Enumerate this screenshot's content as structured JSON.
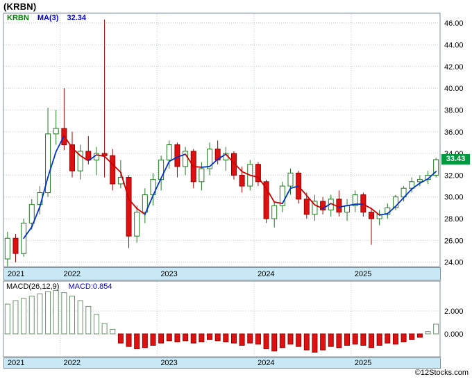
{
  "title": "(KRBN)",
  "legend": {
    "ticker": "KRBN",
    "ma_label": "MA(3)",
    "ma_value": "32.34"
  },
  "price_badge": "33.43",
  "macd_header": {
    "label": "MACD(26,12,9)",
    "value_label": "MACD:0.854"
  },
  "watermark": "©12Stocks.com",
  "colors": {
    "up_green": "#1f7a1f",
    "up_fill": "#ffffff",
    "down_red": "#dd1111",
    "down_stroke": "#990000",
    "ma_up_blue": "#0033cc",
    "ma_down_red": "#cc0000",
    "grid_gray": "#c4ccd4",
    "panel_border": "#7d8f9e",
    "band_blue": "#c9e8f5",
    "badge_green": "#009940",
    "legend_ticker_green": "#008000",
    "legend_blue": "#0000cd",
    "macd_pos_outline": "#6b8f6b",
    "macd_neg_red": "#dd1111",
    "text_black": "#000000"
  },
  "chart_data": {
    "type": "candlestick_with_macd",
    "title": "(KRBN)",
    "xlabel": "",
    "ylabel": "",
    "grid": true,
    "legend_position": "top-left-inside",
    "months": [
      "2021-06",
      "2021-07",
      "2021-08",
      "2021-09",
      "2021-10",
      "2021-11",
      "2021-12",
      "2022-01",
      "2022-02",
      "2022-03",
      "2022-04",
      "2022-05",
      "2022-06",
      "2022-07",
      "2022-08",
      "2022-09",
      "2022-10",
      "2022-11",
      "2022-12",
      "2023-01",
      "2023-02",
      "2023-03",
      "2023-04",
      "2023-05",
      "2023-06",
      "2023-07",
      "2023-08",
      "2023-09",
      "2023-10",
      "2023-11",
      "2023-12",
      "2024-01",
      "2024-02",
      "2024-03",
      "2024-04",
      "2024-05",
      "2024-06",
      "2024-07",
      "2024-08",
      "2024-09",
      "2024-10",
      "2024-11",
      "2024-12",
      "2025-01",
      "2025-02",
      "2025-03",
      "2025-04",
      "2025-05",
      "2025-06",
      "2025-07",
      "2025-08",
      "2025-09",
      "2025-10",
      "2025-11"
    ],
    "ohlc": [
      [
        24.3,
        26.8,
        23.6,
        26.2
      ],
      [
        26.2,
        26.6,
        24.0,
        24.8
      ],
      [
        24.8,
        28.0,
        24.5,
        27.6
      ],
      [
        27.6,
        29.8,
        27.0,
        29.3
      ],
      [
        29.3,
        31.0,
        28.4,
        30.4
      ],
      [
        30.4,
        38.2,
        30.0,
        35.8
      ],
      [
        35.8,
        38.0,
        34.8,
        36.3
      ],
      [
        36.3,
        40.0,
        34.3,
        34.8
      ],
      [
        34.8,
        36.0,
        31.8,
        32.4
      ],
      [
        32.4,
        34.8,
        31.6,
        34.2
      ],
      [
        34.2,
        35.6,
        33.0,
        33.4
      ],
      [
        33.4,
        34.6,
        32.0,
        34.0
      ],
      [
        34.0,
        46.3,
        31.8,
        33.8
      ],
      [
        33.8,
        34.4,
        30.6,
        31.2
      ],
      [
        31.2,
        33.4,
        30.8,
        31.8
      ],
      [
        31.8,
        32.0,
        25.3,
        26.4
      ],
      [
        26.4,
        29.2,
        25.8,
        28.6
      ],
      [
        28.6,
        30.8,
        27.6,
        30.2
      ],
      [
        30.2,
        32.2,
        29.2,
        31.6
      ],
      [
        31.6,
        33.8,
        30.6,
        33.4
      ],
      [
        33.4,
        35.2,
        32.6,
        34.8
      ],
      [
        34.8,
        35.0,
        31.8,
        32.8
      ],
      [
        32.8,
        34.6,
        32.0,
        34.2
      ],
      [
        34.2,
        34.4,
        30.8,
        31.4
      ],
      [
        31.4,
        33.2,
        30.6,
        32.6
      ],
      [
        32.6,
        35.0,
        32.0,
        34.4
      ],
      [
        34.4,
        35.2,
        33.0,
        33.4
      ],
      [
        33.4,
        34.6,
        32.4,
        34.0
      ],
      [
        34.0,
        34.2,
        31.6,
        32.0
      ],
      [
        32.0,
        32.8,
        30.4,
        31.0
      ],
      [
        31.0,
        33.4,
        30.6,
        33.0
      ],
      [
        33.0,
        33.2,
        31.0,
        31.4
      ],
      [
        31.4,
        31.6,
        27.6,
        28.0
      ],
      [
        28.0,
        29.6,
        27.2,
        29.2
      ],
      [
        29.2,
        31.4,
        28.6,
        31.0
      ],
      [
        31.0,
        32.6,
        30.2,
        32.2
      ],
      [
        32.2,
        32.4,
        29.4,
        29.8
      ],
      [
        29.8,
        30.4,
        28.0,
        28.4
      ],
      [
        28.4,
        30.2,
        27.8,
        29.6
      ],
      [
        29.6,
        30.0,
        28.4,
        28.8
      ],
      [
        28.8,
        30.2,
        28.2,
        29.8
      ],
      [
        29.8,
        30.6,
        28.2,
        28.6
      ],
      [
        28.6,
        29.8,
        27.8,
        29.2
      ],
      [
        29.2,
        30.6,
        28.6,
        30.2
      ],
      [
        30.2,
        30.4,
        28.2,
        28.6
      ],
      [
        28.6,
        29.0,
        25.6,
        28.0
      ],
      [
        28.0,
        28.8,
        27.4,
        28.4
      ],
      [
        28.4,
        29.4,
        28.0,
        29.0
      ],
      [
        29.0,
        30.2,
        28.8,
        30.0
      ],
      [
        30.0,
        31.0,
        29.6,
        30.8
      ],
      [
        30.8,
        31.8,
        30.4,
        31.4
      ],
      [
        31.4,
        32.0,
        31.0,
        31.6
      ],
      [
        31.6,
        32.4,
        31.2,
        32.0
      ],
      [
        32.0,
        33.6,
        31.8,
        33.43
      ]
    ],
    "ma_period": 3,
    "ma_last": 32.34,
    "last_price": 33.43,
    "price_axis": {
      "ticks": [
        46,
        44,
        42,
        40,
        38,
        36,
        34,
        32,
        30,
        28,
        26,
        24
      ],
      "ylim": [
        23.6,
        46.9
      ]
    },
    "macd": {
      "params": "26,12,9",
      "last": 0.854,
      "ticks": [
        2.0,
        0.0
      ],
      "ylim": [
        -2.1,
        4.7
      ],
      "values": [
        2.6,
        2.9,
        3.1,
        3.3,
        3.5,
        3.7,
        3.8,
        3.6,
        3.3,
        2.9,
        2.4,
        1.7,
        0.9,
        0.4,
        -0.8,
        -1.1,
        -1.3,
        -1.2,
        -1.0,
        -0.8,
        -0.6,
        -0.7,
        -0.6,
        -0.8,
        -0.7,
        -0.5,
        -0.6,
        -0.7,
        -0.8,
        -1.0,
        -0.8,
        -0.9,
        -1.3,
        -1.5,
        -1.2,
        -0.9,
        -1.1,
        -1.4,
        -1.6,
        -1.4,
        -1.1,
        -1.2,
        -1.0,
        -0.9,
        -1.0,
        -1.2,
        -1.0,
        -0.8,
        -0.9,
        -0.7,
        -0.5,
        -0.3,
        0.2,
        0.85
      ]
    },
    "years": [
      {
        "label": "2021",
        "index": 0
      },
      {
        "label": "2022",
        "index": 7
      },
      {
        "label": "2023",
        "index": 19
      },
      {
        "label": "2024",
        "index": 31
      },
      {
        "label": "2025",
        "index": 43
      }
    ]
  }
}
